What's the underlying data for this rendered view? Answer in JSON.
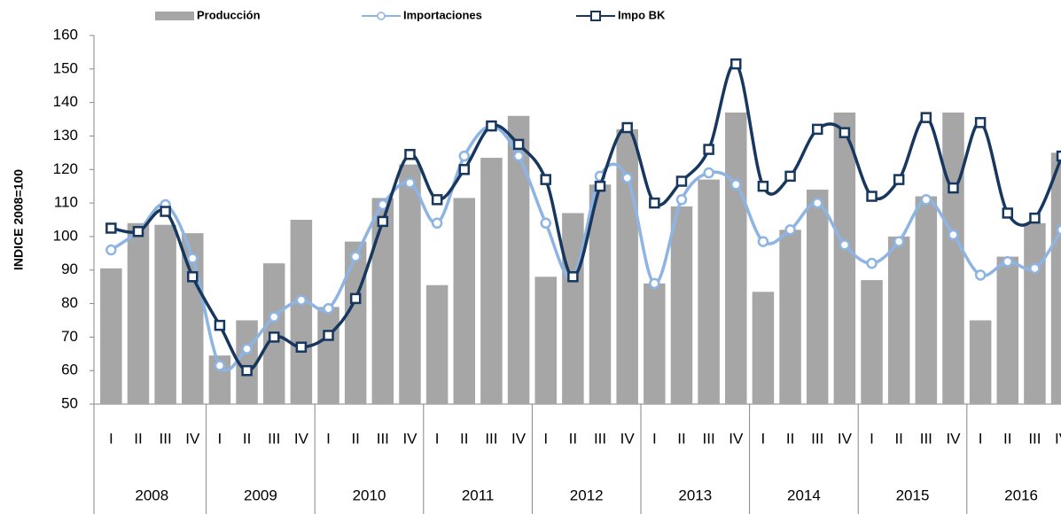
{
  "chart_data": {
    "type": "bar_line",
    "y_label": "INDICE 2008=100",
    "categories": [
      "I",
      "II",
      "III",
      "IV",
      "I",
      "II",
      "III",
      "IV",
      "I",
      "II",
      "III",
      "IV",
      "I",
      "II",
      "III",
      "IV",
      "I",
      "II",
      "III",
      "IV",
      "I",
      "II",
      "III",
      "IV",
      "I",
      "II",
      "III",
      "IV",
      "I",
      "II",
      "III",
      "IV",
      "I",
      "II",
      "III",
      "IV"
    ],
    "groups": [
      "2008",
      "2009",
      "2010",
      "2011",
      "2012",
      "2013",
      "2014",
      "2015",
      "2016"
    ],
    "series": [
      {
        "name": "Producción",
        "kind": "bar",
        "color": "#a6a6a6",
        "values": [
          90.5,
          104,
          103.5,
          101,
          64.5,
          75,
          92,
          105,
          79,
          98.5,
          111.5,
          121.5,
          85.5,
          111.5,
          123.5,
          136,
          88,
          107,
          115.5,
          132,
          86,
          109,
          117,
          137,
          83.5,
          102,
          114,
          137,
          87,
          100,
          112,
          137,
          75,
          94,
          104,
          125
        ]
      },
      {
        "name": "Importaciones",
        "kind": "line",
        "marker": "circle",
        "color": "#8db4e2",
        "values": [
          96,
          101.5,
          109.5,
          93.5,
          61.5,
          66.5,
          76,
          81,
          78.5,
          94,
          109.5,
          116,
          104,
          124,
          133,
          124,
          104,
          88,
          118,
          117.5,
          86,
          111,
          119,
          115.5,
          98.5,
          102,
          110,
          97.5,
          92,
          98.5,
          111,
          100.5,
          88.5,
          92.5,
          90.5,
          102
        ]
      },
      {
        "name": "Impo BK",
        "kind": "line",
        "marker": "square",
        "color": "#17375e",
        "values": [
          102.5,
          101.5,
          107.5,
          88,
          73.5,
          60,
          70,
          67,
          70.5,
          81.5,
          104.5,
          124.5,
          111,
          120,
          133,
          127.5,
          117,
          88,
          115,
          132.5,
          110,
          116.5,
          126,
          151.5,
          115,
          118,
          132,
          131,
          112,
          117,
          135.5,
          114.5,
          134,
          107,
          105.5,
          124
        ]
      }
    ],
    "ylim": [
      50,
      160
    ],
    "yticks": [
      50,
      60,
      70,
      80,
      90,
      100,
      110,
      120,
      130,
      140,
      150,
      160
    ]
  }
}
